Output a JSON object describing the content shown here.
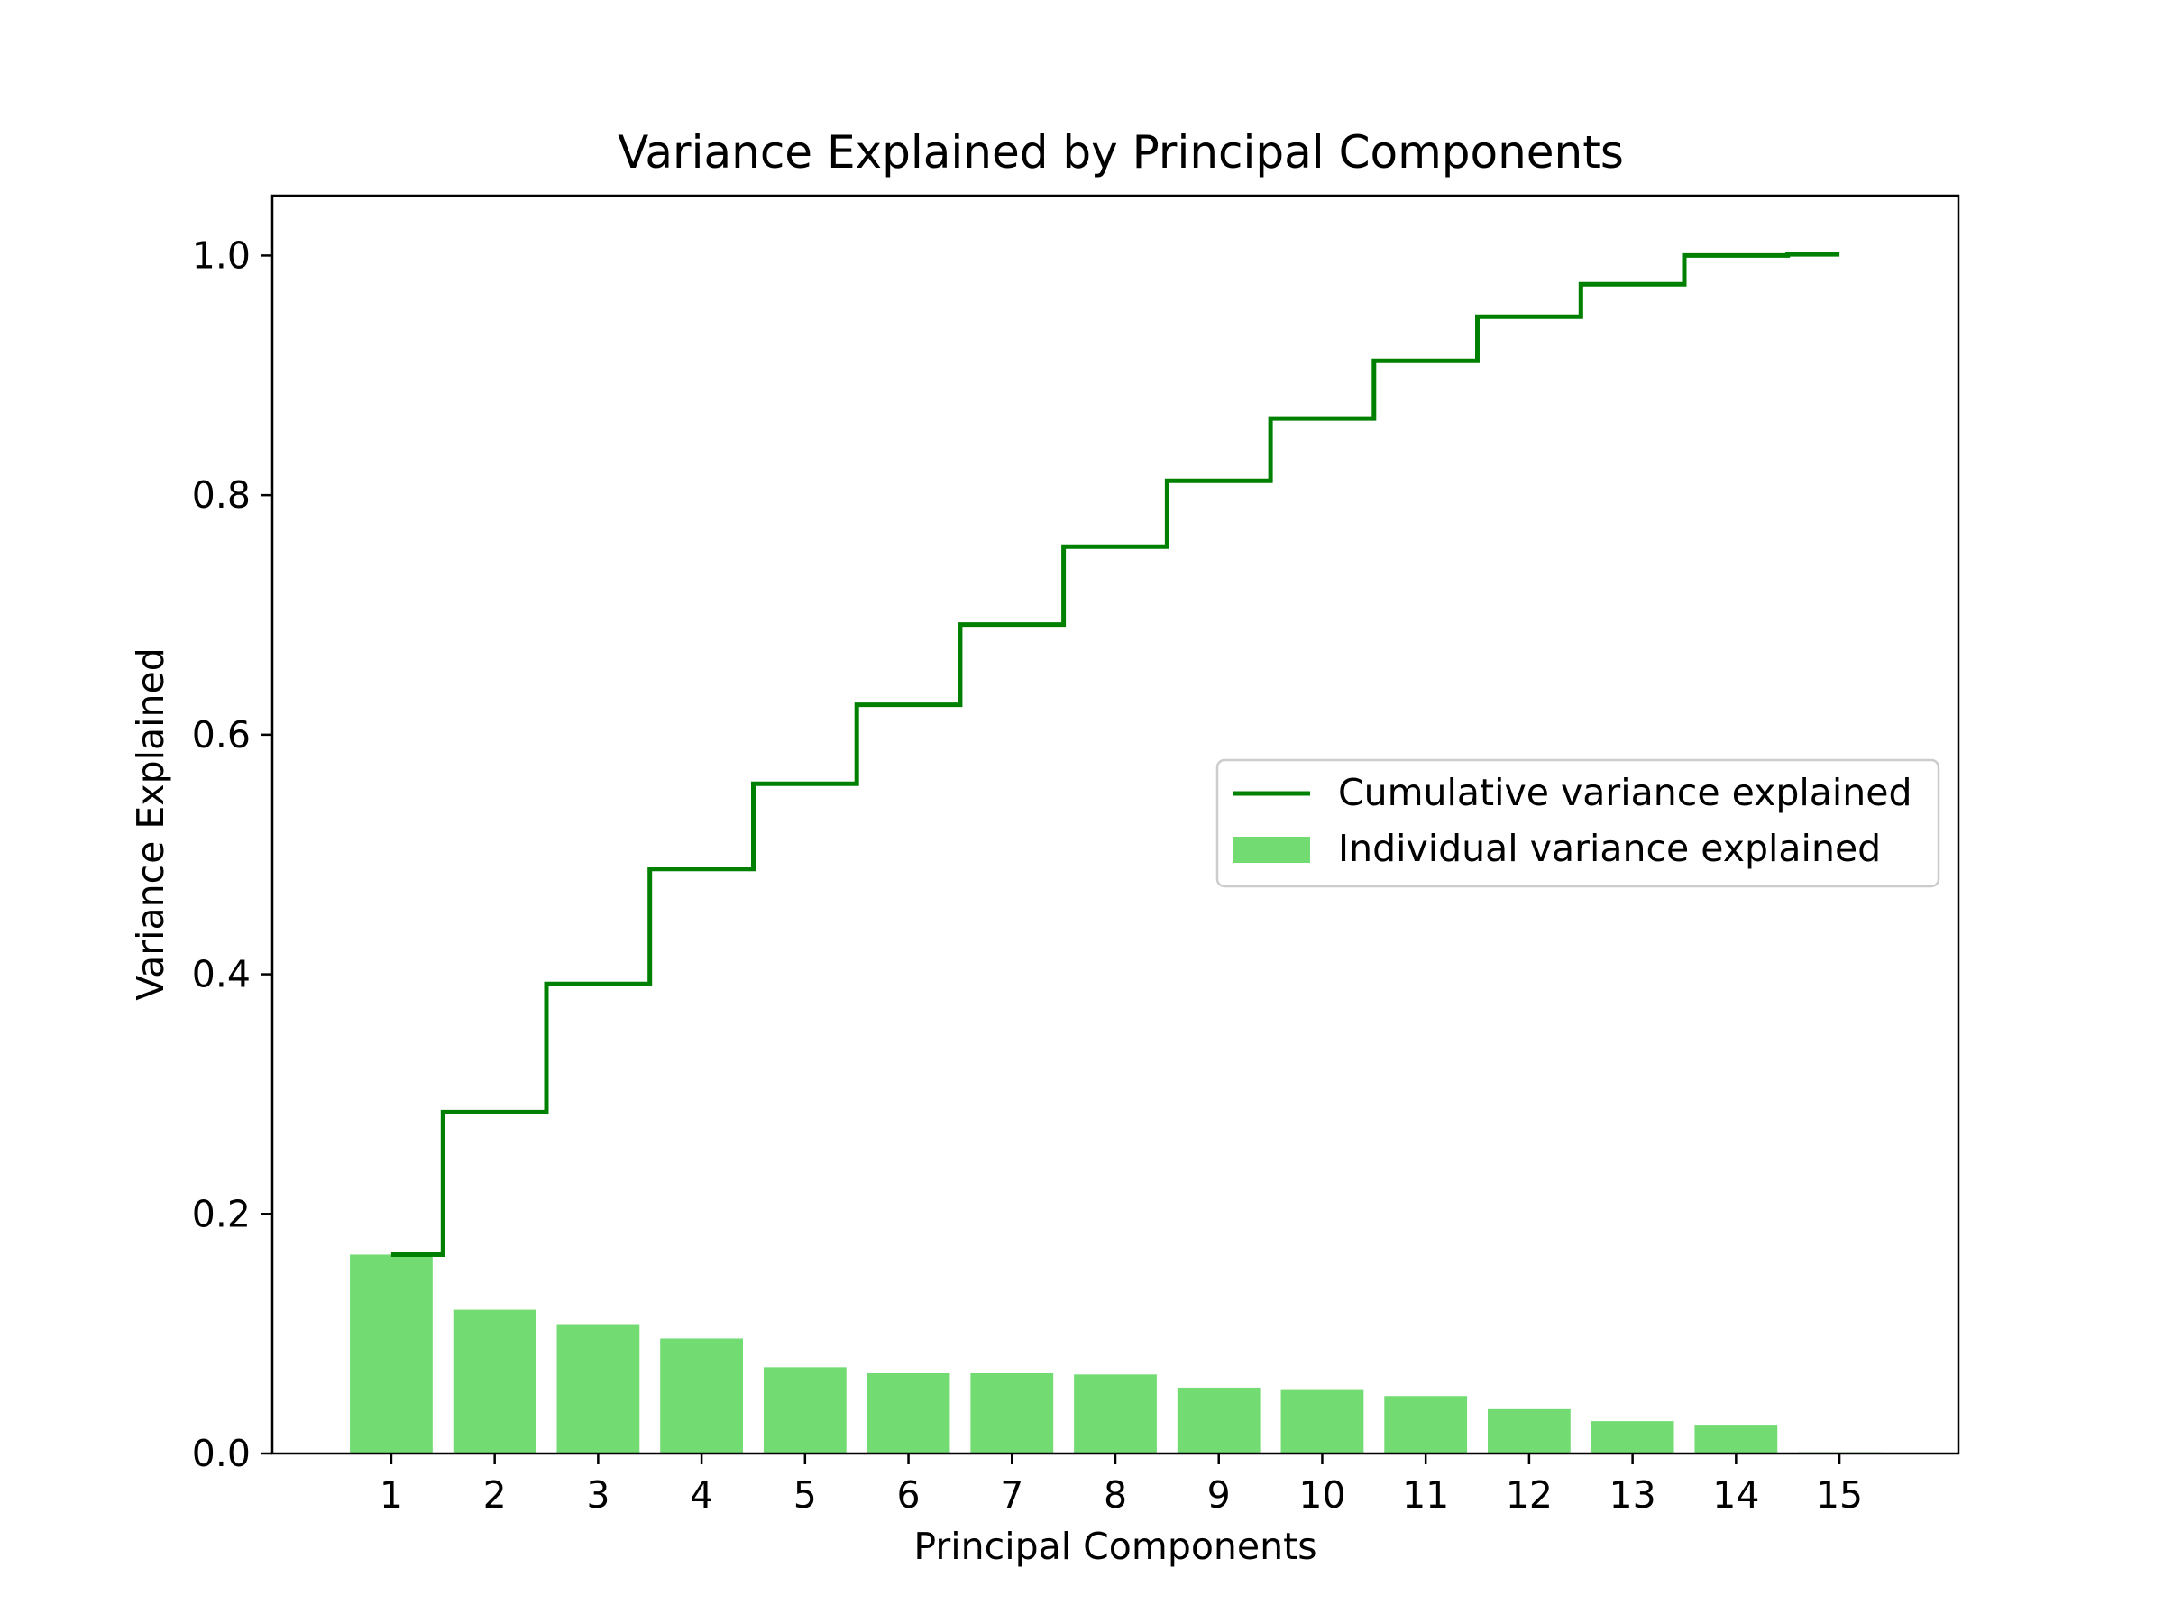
{
  "chart_data": {
    "type": "bar",
    "title": "Variance Explained by Principal Components",
    "xlabel": "Principal Components",
    "ylabel": "Variance Explained",
    "categories": [
      "1",
      "2",
      "3",
      "4",
      "5",
      "6",
      "7",
      "8",
      "9",
      "10",
      "11",
      "12",
      "13",
      "14",
      "15"
    ],
    "xlim": [
      -0.15,
      16.15
    ],
    "ylim": [
      0,
      1.05
    ],
    "yticks": [
      "0.0",
      "0.2",
      "0.4",
      "0.6",
      "0.8",
      "1.0"
    ],
    "grid": false,
    "legend_position": "center-right",
    "series": [
      {
        "name": "Individual variance explained",
        "type": "bar",
        "color": "#72db72",
        "values": [
          0.166,
          0.12,
          0.108,
          0.096,
          0.072,
          0.067,
          0.067,
          0.066,
          0.055,
          0.053,
          0.048,
          0.037,
          0.027,
          0.024,
          0.001
        ]
      },
      {
        "name": "Cumulative variance explained",
        "type": "step",
        "color": "#008000",
        "values": [
          0.166,
          0.285,
          0.392,
          0.488,
          0.559,
          0.625,
          0.692,
          0.757,
          0.812,
          0.864,
          0.912,
          0.949,
          0.976,
          1.0,
          1.001
        ]
      }
    ]
  }
}
